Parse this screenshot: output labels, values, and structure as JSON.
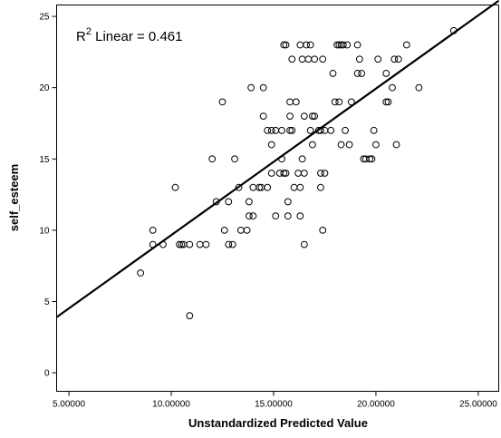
{
  "chart_data": {
    "type": "scatter",
    "xlabel": "Unstandardized Predicted Value",
    "ylabel": "self_esteem",
    "xlim": [
      4.4,
      26.0
    ],
    "ylim": [
      -1.3,
      25.8
    ],
    "x_ticks": [
      5,
      10,
      15,
      20,
      25
    ],
    "x_tick_labels": [
      "5.00000",
      "10.00000",
      "15.00000",
      "20.00000",
      "25.00000"
    ],
    "y_ticks": [
      0,
      5,
      10,
      15,
      20,
      25
    ],
    "y_tick_labels": [
      "0",
      "5",
      "10",
      "15",
      "20",
      "25"
    ],
    "grid": false,
    "fit_line": {
      "label_main": "R",
      "label_sup": "2",
      "label_rest": " Linear = 0.461",
      "x": [
        4.4,
        26.0
      ],
      "y": [
        3.9,
        26.1
      ]
    },
    "points": [
      {
        "x": 8.5,
        "y": 7
      },
      {
        "x": 9.1,
        "y": 10
      },
      {
        "x": 9.1,
        "y": 9
      },
      {
        "x": 9.6,
        "y": 9
      },
      {
        "x": 10.2,
        "y": 13
      },
      {
        "x": 10.4,
        "y": 9
      },
      {
        "x": 10.5,
        "y": 9
      },
      {
        "x": 10.6,
        "y": 9
      },
      {
        "x": 10.9,
        "y": 9
      },
      {
        "x": 10.9,
        "y": 4
      },
      {
        "x": 11.4,
        "y": 9
      },
      {
        "x": 11.7,
        "y": 9
      },
      {
        "x": 12.0,
        "y": 15
      },
      {
        "x": 12.2,
        "y": 12
      },
      {
        "x": 12.5,
        "y": 19
      },
      {
        "x": 12.6,
        "y": 10
      },
      {
        "x": 12.8,
        "y": 12
      },
      {
        "x": 12.8,
        "y": 9
      },
      {
        "x": 13.0,
        "y": 9
      },
      {
        "x": 13.1,
        "y": 15
      },
      {
        "x": 13.3,
        "y": 13
      },
      {
        "x": 13.4,
        "y": 10
      },
      {
        "x": 13.7,
        "y": 10
      },
      {
        "x": 13.8,
        "y": 12
      },
      {
        "x": 13.8,
        "y": 11
      },
      {
        "x": 13.9,
        "y": 20
      },
      {
        "x": 14.0,
        "y": 13
      },
      {
        "x": 14.0,
        "y": 11
      },
      {
        "x": 14.3,
        "y": 13
      },
      {
        "x": 14.4,
        "y": 13
      },
      {
        "x": 14.5,
        "y": 20
      },
      {
        "x": 14.5,
        "y": 18
      },
      {
        "x": 14.7,
        "y": 17
      },
      {
        "x": 14.7,
        "y": 13
      },
      {
        "x": 14.9,
        "y": 17
      },
      {
        "x": 14.9,
        "y": 16
      },
      {
        "x": 14.9,
        "y": 14
      },
      {
        "x": 15.1,
        "y": 17
      },
      {
        "x": 15.1,
        "y": 11
      },
      {
        "x": 15.3,
        "y": 14
      },
      {
        "x": 15.4,
        "y": 15
      },
      {
        "x": 15.4,
        "y": 17
      },
      {
        "x": 15.5,
        "y": 14
      },
      {
        "x": 15.5,
        "y": 23
      },
      {
        "x": 15.6,
        "y": 23
      },
      {
        "x": 15.6,
        "y": 14
      },
      {
        "x": 15.7,
        "y": 12
      },
      {
        "x": 15.7,
        "y": 11
      },
      {
        "x": 15.8,
        "y": 17
      },
      {
        "x": 15.8,
        "y": 19
      },
      {
        "x": 15.8,
        "y": 18
      },
      {
        "x": 15.9,
        "y": 22
      },
      {
        "x": 15.9,
        "y": 17
      },
      {
        "x": 16.0,
        "y": 13
      },
      {
        "x": 16.1,
        "y": 19
      },
      {
        "x": 16.2,
        "y": 14
      },
      {
        "x": 16.3,
        "y": 13
      },
      {
        "x": 16.3,
        "y": 11
      },
      {
        "x": 16.3,
        "y": 23
      },
      {
        "x": 16.4,
        "y": 15
      },
      {
        "x": 16.4,
        "y": 22
      },
      {
        "x": 16.5,
        "y": 18
      },
      {
        "x": 16.5,
        "y": 14
      },
      {
        "x": 16.5,
        "y": 9
      },
      {
        "x": 16.6,
        "y": 23
      },
      {
        "x": 16.7,
        "y": 22
      },
      {
        "x": 16.8,
        "y": 23
      },
      {
        "x": 16.8,
        "y": 17
      },
      {
        "x": 16.9,
        "y": 16
      },
      {
        "x": 16.9,
        "y": 18
      },
      {
        "x": 17.0,
        "y": 18
      },
      {
        "x": 17.0,
        "y": 22
      },
      {
        "x": 17.2,
        "y": 17
      },
      {
        "x": 17.3,
        "y": 17
      },
      {
        "x": 17.3,
        "y": 14
      },
      {
        "x": 17.3,
        "y": 13
      },
      {
        "x": 17.4,
        "y": 10
      },
      {
        "x": 17.4,
        "y": 22
      },
      {
        "x": 17.5,
        "y": 17
      },
      {
        "x": 17.5,
        "y": 14
      },
      {
        "x": 17.8,
        "y": 17
      },
      {
        "x": 17.9,
        "y": 21
      },
      {
        "x": 18.0,
        "y": 19
      },
      {
        "x": 18.1,
        "y": 23
      },
      {
        "x": 18.2,
        "y": 23
      },
      {
        "x": 18.2,
        "y": 19
      },
      {
        "x": 18.3,
        "y": 16
      },
      {
        "x": 18.3,
        "y": 23
      },
      {
        "x": 18.4,
        "y": 23
      },
      {
        "x": 18.5,
        "y": 17
      },
      {
        "x": 18.6,
        "y": 23
      },
      {
        "x": 18.7,
        "y": 16
      },
      {
        "x": 18.8,
        "y": 19
      },
      {
        "x": 19.1,
        "y": 23
      },
      {
        "x": 19.1,
        "y": 21
      },
      {
        "x": 19.2,
        "y": 22
      },
      {
        "x": 19.3,
        "y": 21
      },
      {
        "x": 19.4,
        "y": 15
      },
      {
        "x": 19.5,
        "y": 15
      },
      {
        "x": 19.7,
        "y": 15
      },
      {
        "x": 19.8,
        "y": 15
      },
      {
        "x": 19.9,
        "y": 17
      },
      {
        "x": 20.0,
        "y": 16
      },
      {
        "x": 20.1,
        "y": 22
      },
      {
        "x": 20.5,
        "y": 19
      },
      {
        "x": 20.5,
        "y": 21
      },
      {
        "x": 20.6,
        "y": 19
      },
      {
        "x": 20.8,
        "y": 20
      },
      {
        "x": 20.9,
        "y": 22
      },
      {
        "x": 21.0,
        "y": 16
      },
      {
        "x": 21.1,
        "y": 22
      },
      {
        "x": 21.5,
        "y": 23
      },
      {
        "x": 22.1,
        "y": 20
      },
      {
        "x": 23.8,
        "y": 24
      }
    ]
  }
}
